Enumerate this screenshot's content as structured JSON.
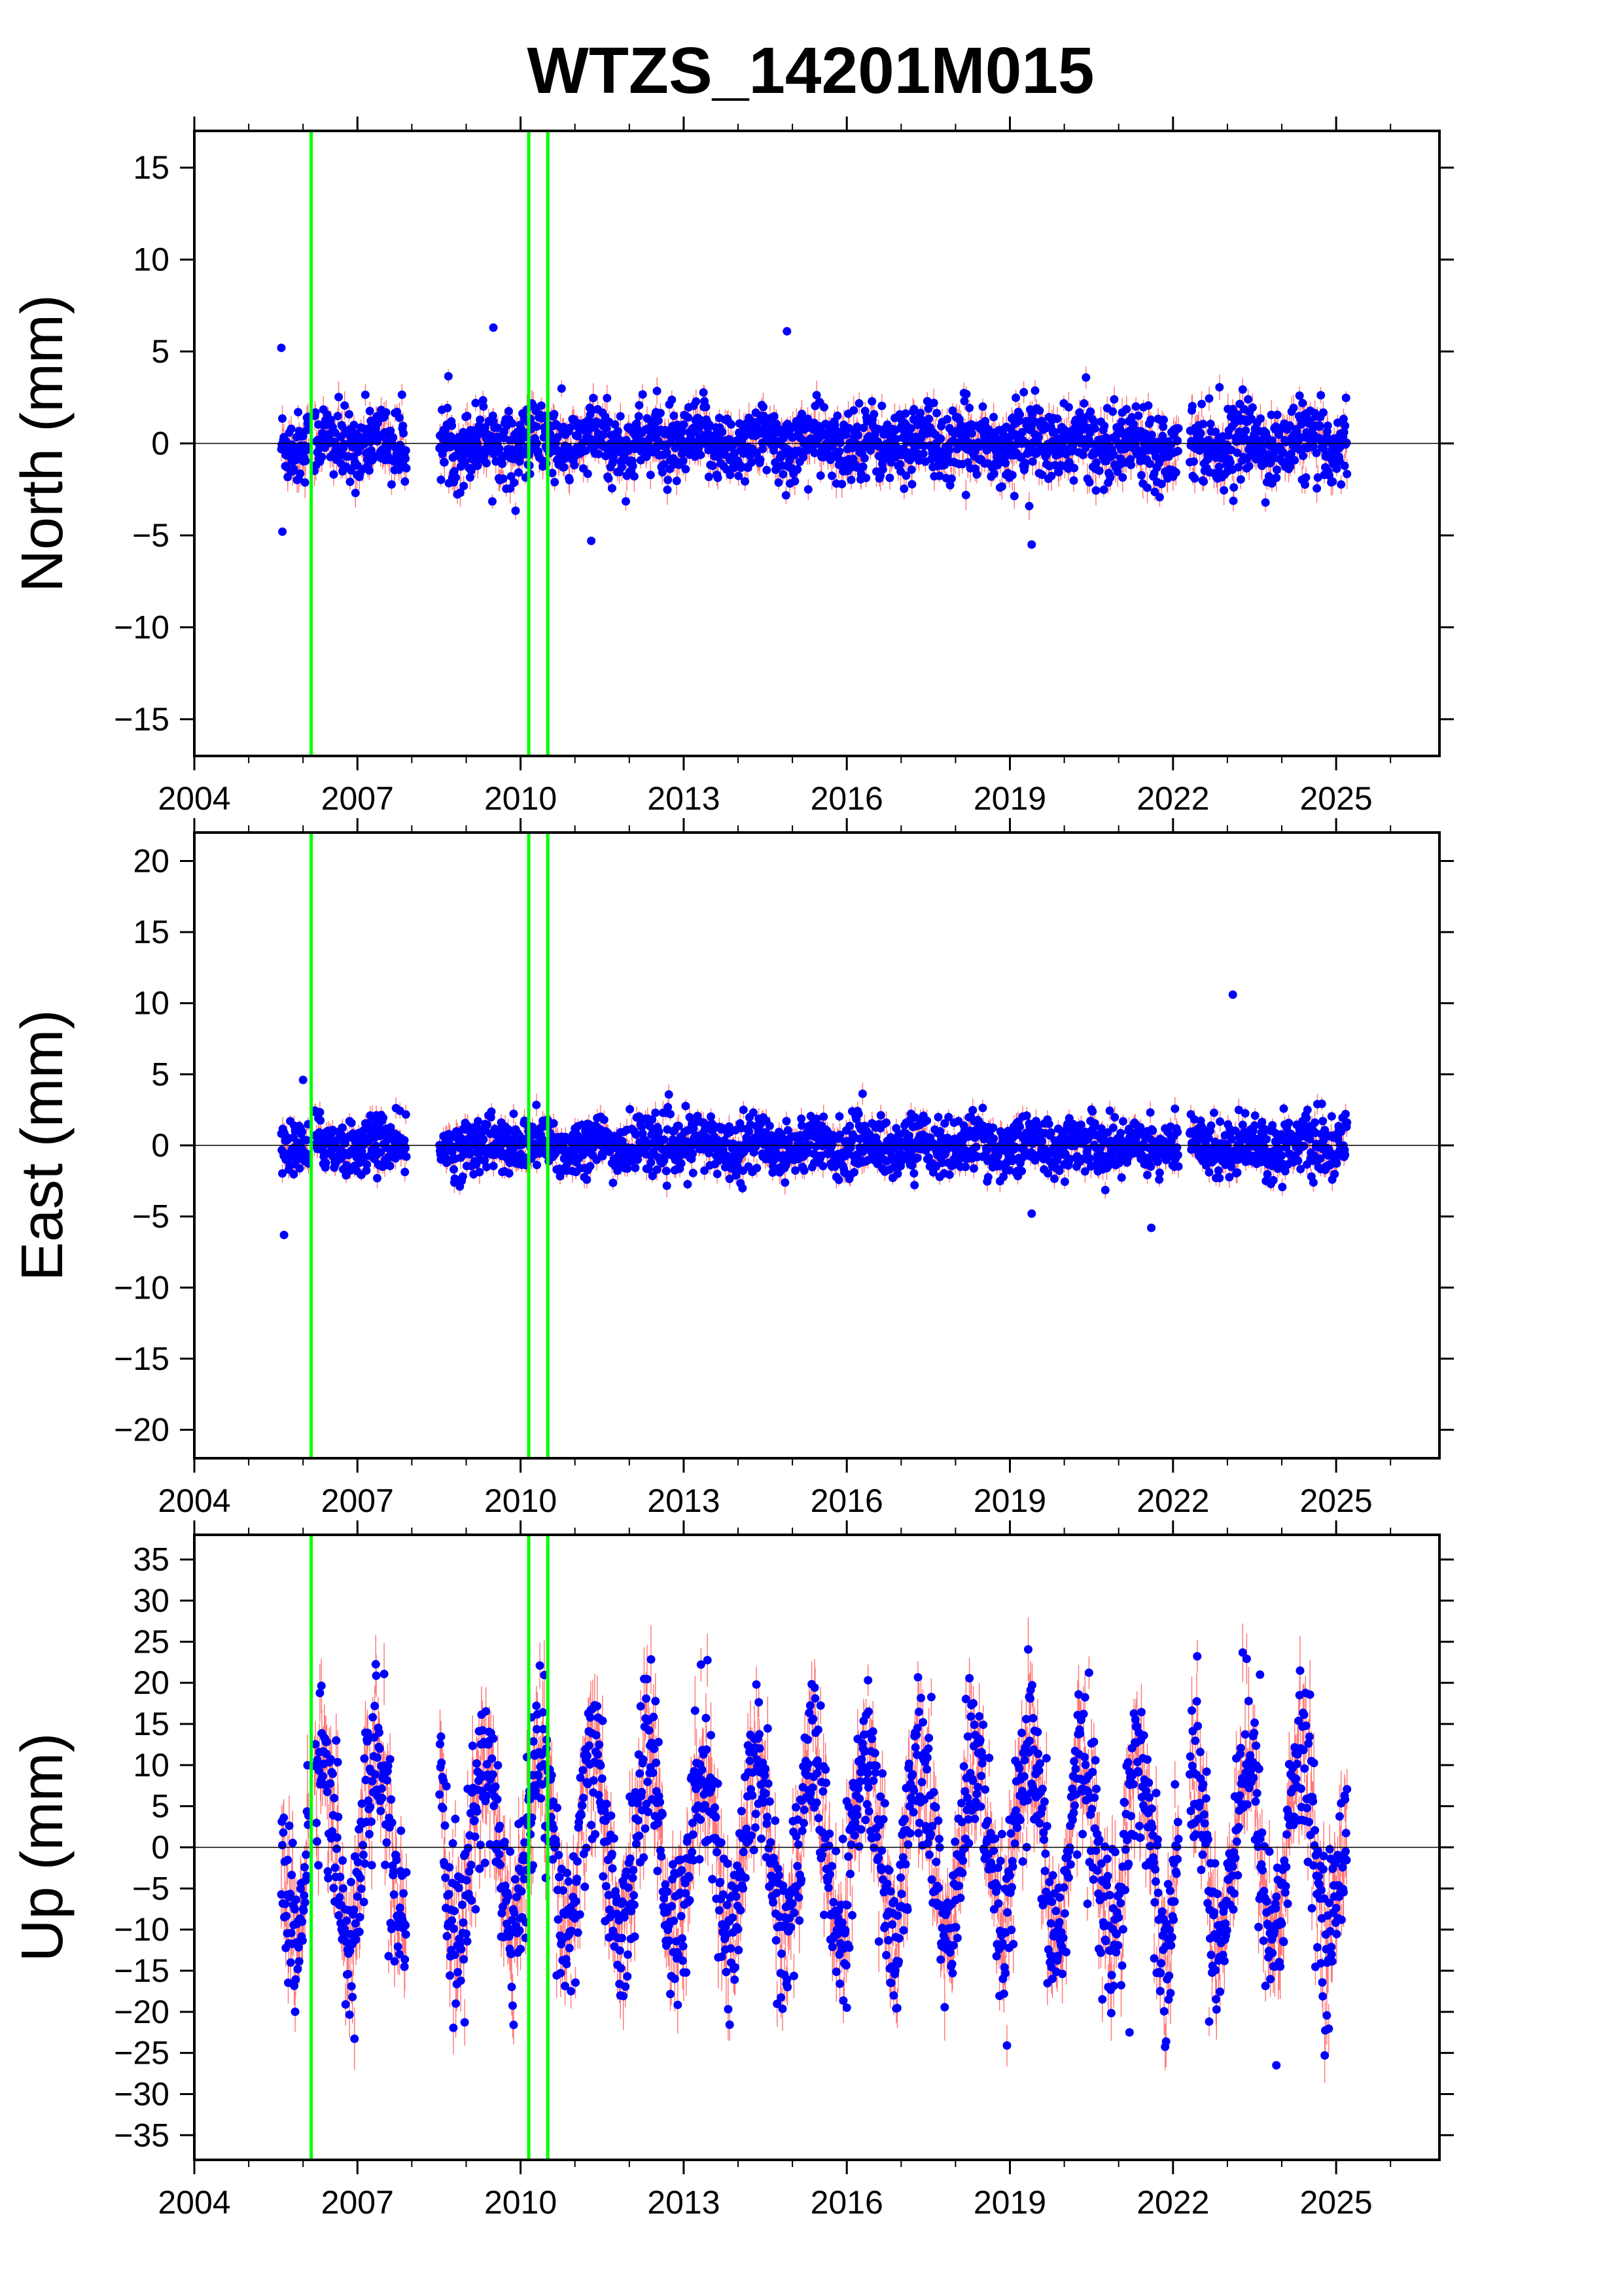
{
  "title": "WTZS_14201M015",
  "colors": {
    "points": "#0000ff",
    "errorbars": "#ff0000",
    "events": "#00ff00",
    "zero_line": "#000000",
    "frame": "#000000"
  },
  "chart_data": [
    {
      "type": "scatter",
      "component": "north",
      "ylabel": "North (mm)",
      "xlim": [
        2004.0,
        2026.9
      ],
      "ylim": [
        -17,
        17
      ],
      "xticks": [
        "2004",
        "2007",
        "2010",
        "2013",
        "2016",
        "2019",
        "2022",
        "2025"
      ],
      "yticks": [
        "15",
        "10",
        "5",
        "0",
        "−10",
        "−15"
      ],
      "ytick_minus5": "−5",
      "event_lines_x": [
        2006.15,
        2010.15,
        2010.5
      ],
      "zero_line": 0,
      "data_gaps": [
        [
          2006.1,
          2006.2
        ],
        [
          2007.9,
          2008.5
        ],
        [
          2022.1,
          2022.3
        ]
      ],
      "data_range_x": [
        2005.6,
        2025.2
      ],
      "scatter_sigma": 1.0,
      "outliers": [
        {
          "x": 2005.6,
          "y": 5.2
        },
        {
          "x": 2005.62,
          "y": -4.8
        },
        {
          "x": 2009.5,
          "y": 6.3
        },
        {
          "x": 2014.9,
          "y": 6.1
        },
        {
          "x": 2019.4,
          "y": -5.5
        },
        {
          "x": 2011.3,
          "y": -5.3
        }
      ]
    },
    {
      "type": "scatter",
      "component": "east",
      "ylabel": "East (mm)",
      "xlim": [
        2004.0,
        2026.9
      ],
      "ylim": [
        -22,
        22
      ],
      "xticks": [
        "2004",
        "2007",
        "2010",
        "2013",
        "2016",
        "2019",
        "2022",
        "2025"
      ],
      "yticks": [
        "20",
        "15",
        "10",
        "5",
        "0",
        "−5",
        "−10",
        "−15",
        "−20"
      ],
      "event_lines_x": [
        2006.15,
        2010.15,
        2010.5
      ],
      "zero_line": 0,
      "data_gaps": [
        [
          2006.1,
          2006.2
        ],
        [
          2007.9,
          2008.5
        ],
        [
          2022.1,
          2022.3
        ]
      ],
      "data_range_x": [
        2005.6,
        2025.2
      ],
      "scatter_sigma": 1.0,
      "outliers": [
        {
          "x": 2023.1,
          "y": 10.6
        },
        {
          "x": 2005.65,
          "y": -6.3
        },
        {
          "x": 2021.6,
          "y": -5.8
        },
        {
          "x": 2019.4,
          "y": -4.8
        },
        {
          "x": 2006.0,
          "y": 4.6
        }
      ]
    },
    {
      "type": "scatter",
      "component": "up",
      "ylabel": "Up (mm)",
      "xlim": [
        2004.0,
        2026.9
      ],
      "ylim": [
        -38,
        38
      ],
      "xticks": [
        "2004",
        "2007",
        "2010",
        "2013",
        "2016",
        "2019",
        "2022",
        "2025"
      ],
      "yticks": [
        "35",
        "30",
        "25",
        "20",
        "15",
        "10",
        "5",
        "0",
        "−5",
        "−10",
        "−15",
        "−20",
        "−25",
        "−30",
        "−35"
      ],
      "event_lines_x": [
        2006.15,
        2010.15,
        2010.5
      ],
      "zero_line": 0,
      "data_gaps": [
        [
          2006.1,
          2006.2
        ],
        [
          2007.9,
          2008.5
        ],
        [
          2022.1,
          2022.3
        ]
      ],
      "data_range_x": [
        2005.6,
        2025.2
      ],
      "scatter_sigma": 5.0,
      "outliers": [
        {
          "x": 2023.9,
          "y": -26.5
        },
        {
          "x": 2023.6,
          "y": 21.0
        },
        {
          "x": 2021.2,
          "y": -22.5
        },
        {
          "x": 2016.4,
          "y": 16.5
        },
        {
          "x": 2010.2,
          "y": 15.8
        },
        {
          "x": 2016.0,
          "y": -19.5
        }
      ]
    }
  ]
}
